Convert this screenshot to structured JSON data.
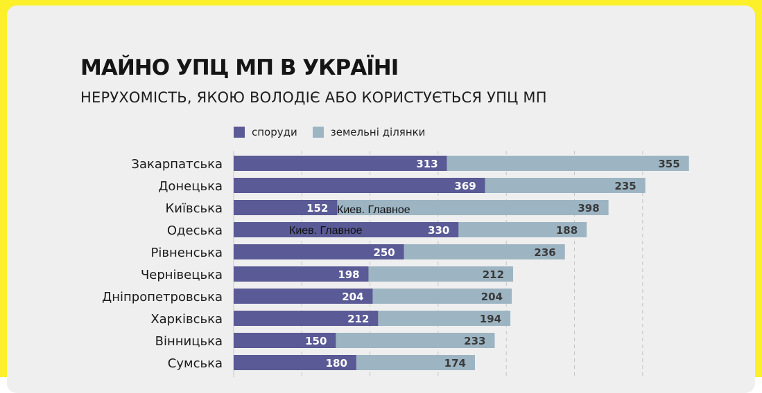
{
  "title": "МАЙНО УПЦ МП В УКРАЇНІ",
  "subtitle": "НЕРУХОМІСТЬ, ЯКОЮ ВОЛОДІЄ АБО КОРИСТУЄТЬСЯ УПЦ МП",
  "colors": {
    "frame": "#fbf02a",
    "background": "#efefef",
    "buildings": "#5a5a96",
    "land": "#9db5c3",
    "grid": "#c4c4c4"
  },
  "overlay_labels": [
    "Киев. Главное",
    "Киев. Главное"
  ],
  "chart_data": {
    "type": "bar",
    "orientation": "horizontal",
    "stacked": true,
    "title": "МАЙНО УПЦ МП В УКРАЇНІ",
    "subtitle": "НЕРУХОМІСТЬ, ЯКОЮ ВОЛОДІЄ АБО КОРИСТУЄТЬСЯ УПЦ МП",
    "legend_position": "top",
    "grid": true,
    "xlim": [
      0,
      750
    ],
    "categories": [
      "Закарпатська",
      "Донецька",
      "Київська",
      "Одеська",
      "Рівненська",
      "Чернівецька",
      "Дніпропетровська",
      "Харківська",
      "Вінницька",
      "Сумська"
    ],
    "series": [
      {
        "name": "споруди",
        "color": "#5a5a96",
        "values": [
          313,
          369,
          152,
          330,
          250,
          198,
          204,
          212,
          150,
          180
        ]
      },
      {
        "name": "земельні ділянки",
        "color": "#9db5c3",
        "values": [
          355,
          235,
          398,
          188,
          236,
          212,
          204,
          194,
          233,
          174
        ]
      }
    ]
  }
}
